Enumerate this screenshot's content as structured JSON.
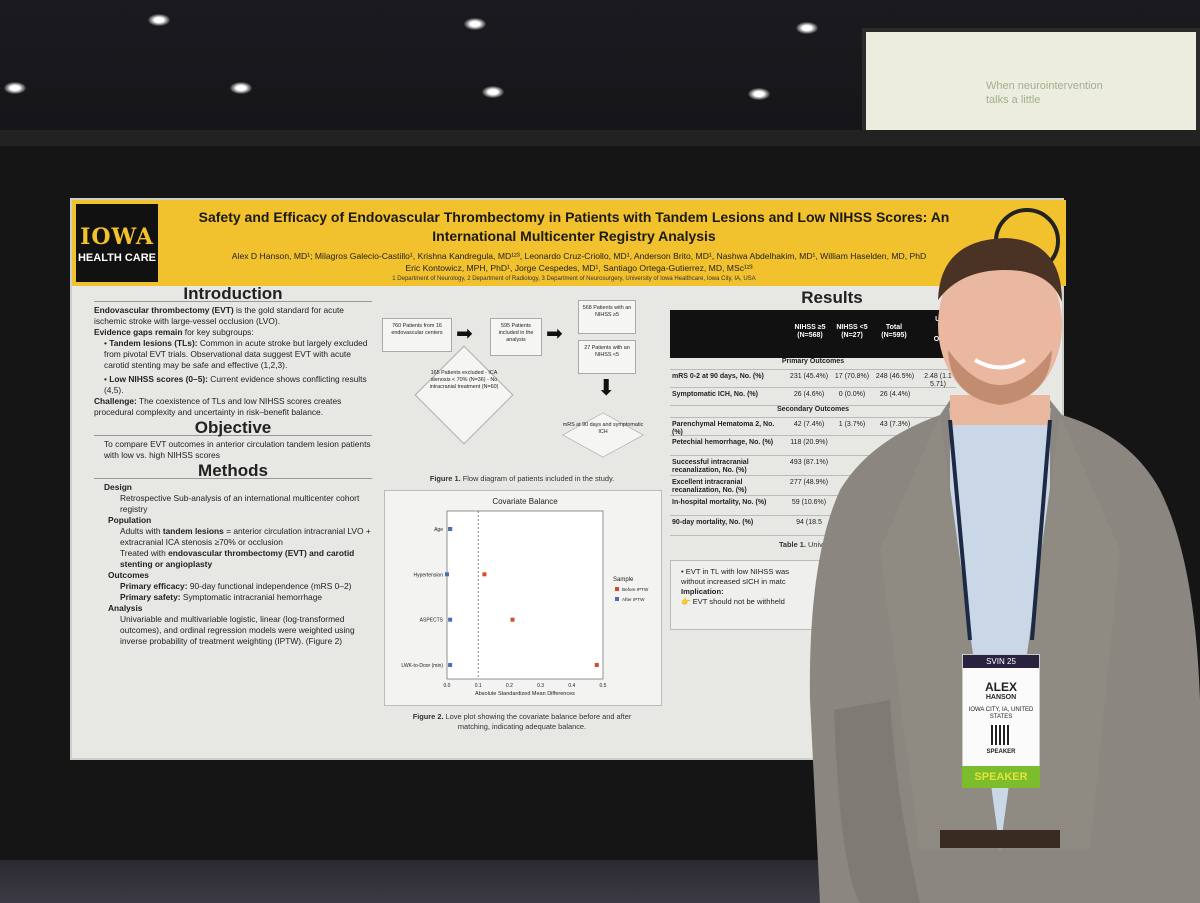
{
  "poster": {
    "title": "Safety and Efficacy of Endovascular Thrombectomy in Patients with Tandem Lesions and Low NIHSS Scores: An International Multicenter Registry Analysis",
    "logo_line1": "IOWA",
    "logo_line2": "HEALTH CARE",
    "authors_line1": "Alex D Hanson, MD¹; Milagros Galecio-Castillo¹, Krishna Kandregula, MD¹²³, Leonardo Cruz-Criollo, MD¹, Anderson Brito, MD¹, Nashwa Abdelhakim, MD¹, William Haselden, MD, PhD",
    "authors_line2": "Eric Kontowicz, MPH, PhD¹, Jorge Cespedes, MD¹, Santiago Ortega-Gutierrez, MD, MSc¹²³",
    "affiliations": "1 Department of Neurology, 2 Department of Radiology, 3 Department of Neurosurgery, University of Iowa Healthcare, Iowa City, IA, USA",
    "intro": {
      "heading": "Introduction",
      "p1_bold": "Endovascular thrombectomy (EVT)",
      "p1_rest": " is the gold standard for acute ischemic stroke with large-vessel occlusion (LVO).",
      "p2_bold": "Evidence gaps remain",
      "p2_rest": " for key subgroups:",
      "b1_bold": "Tandem lesions (TLs):",
      "b1_rest": " Common in acute stroke but largely excluded from pivotal EVT trials. Observational data suggest EVT with acute carotid stenting may be safe and effective (1,2,3).",
      "b2_bold": "Low NIHSS scores (0–5):",
      "b2_rest": " Current evidence shows conflicting results (4,5).",
      "challenge_bold": "Challenge:",
      "challenge_rest": " The coexistence of TLs and low NIHSS scores creates procedural complexity and uncertainty in risk–benefit balance."
    },
    "objective": {
      "heading": "Objective",
      "text": "To compare EVT outcomes in anterior circulation tandem lesion patients with low vs. high NIHSS scores"
    },
    "methods": {
      "heading": "Methods",
      "design_h": "Design",
      "design": "Retrospective Sub-analysis of an international multicenter cohort registry",
      "population_h": "Population",
      "pop1_pre": "Adults with ",
      "pop1_bold": "tandem lesions",
      "pop1_post": " = anterior circulation intracranial LVO + extracranial ICA stenosis ≥70% or occlusion",
      "pop2_pre": "Treated with ",
      "pop2_bold": "endovascular thrombectomy (EVT) and carotid stenting or angioplasty",
      "outcomes_h": "Outcomes",
      "out1_bold": "Primary efficacy:",
      "out1_rest": " 90-day functional independence (mRS 0–2)",
      "out2_bold": "Primary safety:",
      "out2_rest": " Symptomatic intracranial hemorrhage",
      "analysis_h": "Analysis",
      "analysis": "Univariable and multivariable logistic, linear (log-transformed outcomes), and ordinal regression models were weighted using inverse probability of treatment weighting (IPTW). (Figure 2)"
    },
    "flow": {
      "box1": "760 Patients from 16 endovascular centers",
      "box2": "595 Patients included in the analysis",
      "box3": "568 Patients with an NIHSS ≥5",
      "box4": "27 Patients with an NIHSS <5",
      "excluded": "165 Patients excluded - ICA stenosis < 70% (N=36) - No intracranial treatment (N=60)",
      "outcome": "mRS at 90 days and symptomatic ICH",
      "caption_bold": "Figure 1.",
      "caption_rest": " Flow diagram of patients included in the study."
    },
    "love_plot": {
      "title": "Covariate Balance",
      "xlabel": "Absolute Standardized Mean Differences",
      "legend_title": "Sample",
      "legend_items": [
        "Before IPTW",
        "After IPTW"
      ],
      "caption_bold": "Figure 2.",
      "caption_rest": " Love plot showing the covariate balance before and after matching, indicating adequate balance."
    },
    "chart_data": {
      "type": "scatter",
      "title": "Covariate Balance",
      "xlabel": "Absolute Standardized Mean Differences",
      "categories": [
        "Age",
        "Hypertension",
        "ASPECTS",
        "LWK-to-Door (min)"
      ],
      "x_ticks": [
        "0.0",
        "0.1",
        "0.2",
        "0.3",
        "0.4",
        "0.5"
      ],
      "xlim": [
        0,
        0.5
      ],
      "series": [
        {
          "name": "Before IPTW",
          "color": "#d9482b",
          "values": [
            0.01,
            0.12,
            0.21,
            0.48
          ]
        },
        {
          "name": "After IPTW",
          "color": "#4a6fb5",
          "values": [
            0.01,
            0.0,
            0.01,
            0.01
          ]
        }
      ]
    },
    "results": {
      "heading": "Results",
      "col1": "NIHSS ≥5 (N=568)",
      "col2": "NIHSS <5 (N=27)",
      "col3": "Total (N=595)",
      "col4a": "Ur",
      "col4b": "OR",
      "primary_h": "Primary Outcomes",
      "secondary_h": "Secondary Outcomes",
      "rows": [
        {
          "label": "mRS 0-2 at 90 days, No. (%)",
          "a": "231 (45.4%)",
          "b": "17 (70.8%)",
          "c": "248 (46.5%)",
          "d": "2.48 (1.1 5.71)"
        },
        {
          "label": "Symptomatic ICH, No. (%)",
          "a": "26 (4.6%)",
          "b": "0 (0.0%)",
          "c": "26 (4.4%)",
          "d": ""
        },
        {
          "label": "Parenchymal Hematoma 2, No. (%)",
          "a": "42 (7.4%)",
          "b": "1 (3.7%)",
          "c": "43 (7.3%)",
          "d": ""
        },
        {
          "label": "Petechial hemorrhage, No. (%)",
          "a": "118 (20.9%)",
          "b": "",
          "c": "",
          "d": ""
        },
        {
          "label": "Successful intracranial recanalization, No. (%)",
          "a": "493 (87.1%)",
          "b": "",
          "c": "",
          "d": ""
        },
        {
          "label": "Excellent intracranial recanalization, No. (%)",
          "a": "277 (48.9%)",
          "b": "",
          "c": "",
          "d": ""
        },
        {
          "label": "In-hospital mortality, No. (%)",
          "a": "59 (10.6%)",
          "b": "",
          "c": "",
          "d": ""
        },
        {
          "label": "90-day mortality, No. (%)",
          "a": "94 (18.5",
          "b": "",
          "c": "",
          "d": ""
        }
      ],
      "table_caption_bold": "Table 1.",
      "table_caption_rest": " Univariate c",
      "conclusion_line1": "• EVT in TL with low NIHSS was",
      "conclusion_line2": "without increased sICH in matc",
      "implication_h": "Implication:",
      "implication": "👉 EVT should not be withheld"
    }
  },
  "badge": {
    "event": "SVIN 25",
    "name": "ALEX",
    "surname": "HANSON",
    "location": "IOWA CITY, IA, UNITED STATES",
    "role": "SPEAKER",
    "ribbon": "SPEAKER"
  },
  "screen_text": {
    "line1": "When neurointervention",
    "line2": "talks a little"
  }
}
